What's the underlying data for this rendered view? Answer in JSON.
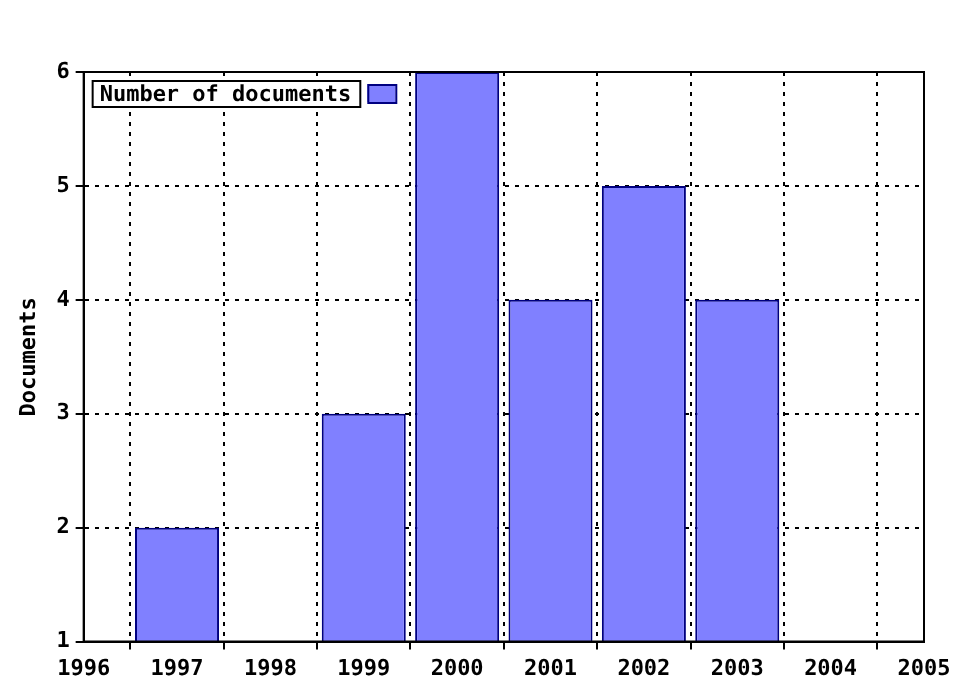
{
  "chart_data": {
    "type": "bar",
    "ylabel": "Documents",
    "x": [
      1997,
      1999,
      2000,
      2001,
      2002,
      2003
    ],
    "series": [
      {
        "name": "Number of documents",
        "color": "#8080ff",
        "values": [
          2,
          3,
          6,
          4,
          5,
          4
        ]
      }
    ],
    "xlim": [
      1996,
      2005
    ],
    "xticks": [
      1996,
      1997,
      1998,
      1999,
      2000,
      2001,
      2002,
      2003,
      2004,
      2005
    ],
    "ylim": [
      1,
      6
    ],
    "yticks": [
      1,
      2,
      3,
      4,
      5,
      6
    ],
    "grid": true,
    "legend": "top left"
  }
}
